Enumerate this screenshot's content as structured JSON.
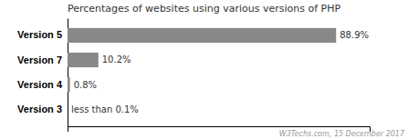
{
  "chart_data": {
    "type": "bar",
    "orientation": "horizontal",
    "title": "Percentages of websites using various versions of PHP",
    "categories": [
      "Version 5",
      "Version 7",
      "Version 4",
      "Version 3"
    ],
    "values": [
      88.9,
      10.2,
      0.8,
      0.0
    ],
    "value_labels": [
      "88.9%",
      "10.2%",
      "0.8%",
      "less than 0.1%"
    ],
    "color": "#888888",
    "xlim": [
      0,
      100
    ],
    "tick_labels": false,
    "data_labels": true,
    "grid": false,
    "annotations": [
      "W3Techs.com, 15 December 2017"
    ]
  }
}
